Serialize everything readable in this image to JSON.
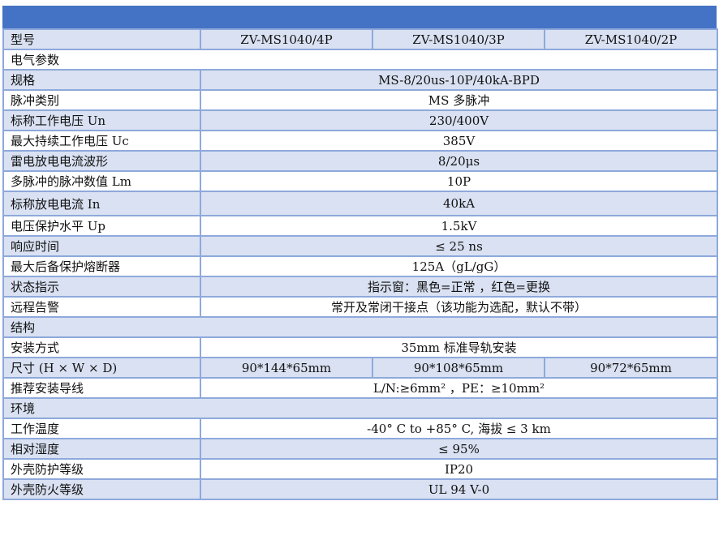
{
  "header_color": "#4472C4",
  "model": {
    "label": "型号",
    "values": [
      "ZV-MS1040/4P",
      "ZV-MS1040/3P",
      "ZV-MS1040/2P"
    ]
  },
  "sections": {
    "electrical": "电气参数",
    "structure": "结构",
    "environment": "环境"
  },
  "electrical": [
    {
      "label": "规格",
      "value": "MS-8/20us-10P/40kA-BPD"
    },
    {
      "label": "脉冲类别",
      "value": "MS 多脉冲"
    },
    {
      "label": "标称工作电压 Un",
      "value": "230/400V"
    },
    {
      "label": "最大持续工作电压 Uc",
      "value": "385V"
    },
    {
      "label": "雷电放电电流波形",
      "value": "8/20μs"
    },
    {
      "label": "多脉冲的脉冲数值 Lm",
      "value": "10P"
    },
    {
      "label": "标称放电电流 In",
      "value": "40kA"
    },
    {
      "label": "电压保护水平 Up",
      "value": "1.5kV"
    },
    {
      "label": "响应时间",
      "value": "≤ 25 ns"
    },
    {
      "label": "最大后备保护熔断器",
      "value": "125A（gL/gG）"
    },
    {
      "label": "状态指示",
      "value": "指示窗：黑色=正常 ，红色=更换"
    },
    {
      "label": "远程告警",
      "value": "常开及常闭干接点（该功能为选配，默认不带）"
    }
  ],
  "structure": {
    "mount": {
      "label": "安装方式",
      "value": "35mm 标准导轨安装"
    },
    "size": {
      "label": "尺寸 (H × W × D)",
      "values": [
        "90*144*65mm",
        "90*108*65mm",
        "90*72*65mm"
      ]
    },
    "wire": {
      "label": "推荐安装导线",
      "value": "L/N:≥6mm² ，PE：≥10mm²"
    }
  },
  "environment": [
    {
      "label": "工作温度",
      "value": "-40° C to +85° C, 海拔 ≤ 3 km"
    },
    {
      "label": "相对湿度",
      "value": "≤ 95%"
    },
    {
      "label": "外壳防护等级",
      "value": "IP20"
    },
    {
      "label": "外壳防火等级",
      "value": "UL 94 V-0"
    }
  ]
}
